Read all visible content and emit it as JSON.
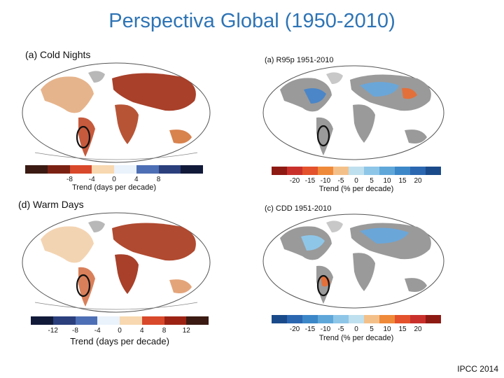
{
  "title": "Perspectiva Global (1950-2010)",
  "credit": "IPCC 2014",
  "panels": [
    {
      "id": "a-cold",
      "title": "(a) Cold Nights",
      "colors": [
        "#3a1a12",
        "#7b2114",
        "#d8482a",
        "#f7d8b0",
        "#eaf2fb",
        "#4d6fb5",
        "#2a3f7c",
        "#121a3a"
      ],
      "ticks": [
        "-8",
        "-4",
        "0",
        "4",
        "8"
      ],
      "axis_label": "Trend (days per decade)"
    },
    {
      "id": "a-r95p",
      "title": "(a)  R95p 1951-2010",
      "colors": [
        "#8e1a14",
        "#c9302c",
        "#e3522c",
        "#ef8a3a",
        "#f4c08a",
        "#bfe0ee",
        "#8ec6e8",
        "#5fa7d9",
        "#3c87c8",
        "#2b67b0",
        "#1a4a8a"
      ],
      "ticks": [
        "-20",
        "-15",
        "-10",
        "-5",
        "0",
        "5",
        "10",
        "15",
        "20"
      ],
      "axis_label": "Trend (% per decade)"
    },
    {
      "id": "d-warm",
      "title": "(d) Warm Days",
      "colors": [
        "#121a3a",
        "#2a3f7c",
        "#4d6fb5",
        "#eaf2fb",
        "#f7d8b0",
        "#d8482a",
        "#9c2314",
        "#3a1a12"
      ],
      "ticks": [
        "-12",
        "-8",
        "-4",
        "0",
        "4",
        "8",
        "12"
      ],
      "axis_label": "Trend (days per decade)"
    },
    {
      "id": "c-cdd",
      "title": "(c)  CDD 1951-2010",
      "colors": [
        "#1a4a8a",
        "#2b67b0",
        "#3c87c8",
        "#5fa7d9",
        "#8ec6e8",
        "#bfe0ee",
        "#f4c08a",
        "#ef8a3a",
        "#e3522c",
        "#c9302c",
        "#8e1a14"
      ],
      "ticks": [
        "-20",
        "-15",
        "-10",
        "-5",
        "0",
        "5",
        "10",
        "15",
        "20"
      ],
      "axis_label": "Trend (% per decade)"
    }
  ]
}
